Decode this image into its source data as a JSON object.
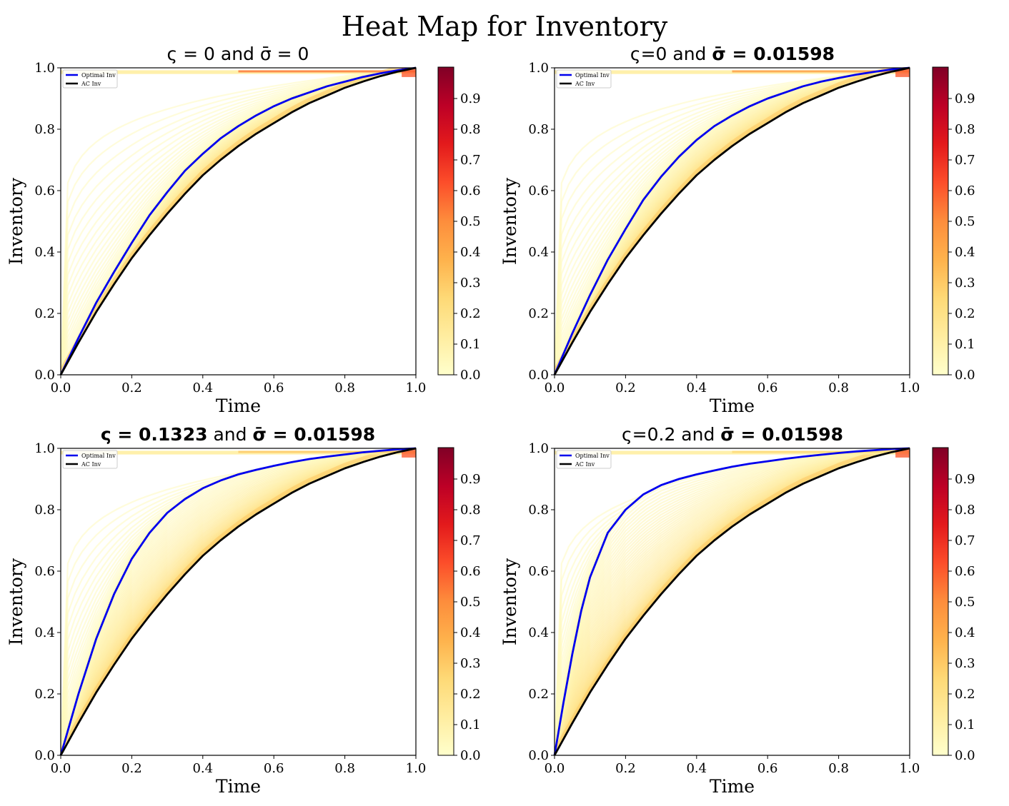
{
  "figure_title": "Heat Map for Inventory",
  "colors": {
    "optimal": "#0000ee",
    "ac": "#000000",
    "axis": "#000000",
    "cmap": [
      "#ffffcc",
      "#ffeda0",
      "#fed976",
      "#feb24c",
      "#fd8d3c",
      "#fc4e2a",
      "#e31a1c",
      "#bd0026",
      "#800026"
    ]
  },
  "chart_data": [
    {
      "type": "heatmap",
      "panel": "top-left",
      "title": {
        "parts": [
          {
            "text": "ς = 0 and ",
            "bold": false
          },
          {
            "text": "σ̄ = 0",
            "bold": false
          }
        ]
      },
      "xlabel": "Time",
      "ylabel": "Inventory",
      "xlim": [
        0,
        1
      ],
      "ylim": [
        0,
        1
      ],
      "xticks": [
        "0.0",
        "0.2",
        "0.4",
        "0.6",
        "0.8",
        "1.0"
      ],
      "yticks": [
        "0.0",
        "0.2",
        "0.4",
        "0.6",
        "0.8",
        "1.0"
      ],
      "legend": {
        "position": "upper-left",
        "entries": [
          "Optimal Inv",
          "AC Inv"
        ]
      },
      "colorbar": {
        "ticks": [
          "0.0",
          "0.1",
          "0.2",
          "0.3",
          "0.4",
          "0.5",
          "0.6",
          "0.7",
          "0.8",
          "0.9"
        ],
        "range": [
          0,
          1
        ]
      },
      "series": [
        {
          "name": "Optimal Inv",
          "color": "blue",
          "x": [
            0,
            0.05,
            0.1,
            0.15,
            0.2,
            0.25,
            0.3,
            0.35,
            0.4,
            0.45,
            0.5,
            0.55,
            0.6,
            0.65,
            0.7,
            0.75,
            0.8,
            0.85,
            0.9,
            0.95,
            1.0
          ],
          "y": [
            0,
            0.12,
            0.235,
            0.335,
            0.43,
            0.52,
            0.595,
            0.665,
            0.72,
            0.77,
            0.81,
            0.845,
            0.875,
            0.9,
            0.92,
            0.94,
            0.955,
            0.97,
            0.982,
            0.992,
            1.0
          ]
        },
        {
          "name": "AC Inv",
          "color": "black",
          "x": [
            0,
            0.05,
            0.1,
            0.15,
            0.2,
            0.25,
            0.3,
            0.35,
            0.4,
            0.45,
            0.5,
            0.55,
            0.6,
            0.65,
            0.7,
            0.75,
            0.8,
            0.85,
            0.9,
            0.95,
            1.0
          ],
          "y": [
            0,
            0.105,
            0.205,
            0.295,
            0.38,
            0.455,
            0.525,
            0.59,
            0.65,
            0.7,
            0.745,
            0.785,
            0.82,
            0.855,
            0.885,
            0.91,
            0.935,
            0.955,
            0.973,
            0.988,
            1.0
          ]
        }
      ]
    },
    {
      "type": "heatmap",
      "panel": "top-right",
      "title": {
        "parts": [
          {
            "text": "ς=0 and ",
            "bold": false
          },
          {
            "text": "σ̄ = 0.01598",
            "bold": true
          }
        ]
      },
      "xlabel": "Time",
      "ylabel": "Inventory",
      "xlim": [
        0,
        1
      ],
      "ylim": [
        0,
        1
      ],
      "xticks": [
        "0.0",
        "0.2",
        "0.4",
        "0.6",
        "0.8",
        "1.0"
      ],
      "yticks": [
        "0.0",
        "0.2",
        "0.4",
        "0.6",
        "0.8",
        "1.0"
      ],
      "legend": {
        "position": "upper-left",
        "entries": [
          "Optimal Inv",
          "AC Inv"
        ]
      },
      "colorbar": {
        "ticks": [
          "0.0",
          "0.1",
          "0.2",
          "0.3",
          "0.4",
          "0.5",
          "0.6",
          "0.7",
          "0.8",
          "0.9"
        ],
        "range": [
          0,
          1
        ]
      },
      "series": [
        {
          "name": "Optimal Inv",
          "color": "blue",
          "x": [
            0,
            0.05,
            0.1,
            0.15,
            0.2,
            0.25,
            0.3,
            0.35,
            0.4,
            0.45,
            0.5,
            0.55,
            0.6,
            0.65,
            0.7,
            0.75,
            0.8,
            0.85,
            0.9,
            0.95,
            1.0
          ],
          "y": [
            0,
            0.135,
            0.26,
            0.375,
            0.475,
            0.57,
            0.645,
            0.71,
            0.765,
            0.81,
            0.845,
            0.875,
            0.9,
            0.92,
            0.94,
            0.955,
            0.967,
            0.978,
            0.987,
            0.995,
            1.0
          ]
        },
        {
          "name": "AC Inv",
          "color": "black",
          "x": [
            0,
            0.05,
            0.1,
            0.15,
            0.2,
            0.25,
            0.3,
            0.35,
            0.4,
            0.45,
            0.5,
            0.55,
            0.6,
            0.65,
            0.7,
            0.75,
            0.8,
            0.85,
            0.9,
            0.95,
            1.0
          ],
          "y": [
            0,
            0.105,
            0.205,
            0.295,
            0.38,
            0.455,
            0.525,
            0.59,
            0.65,
            0.7,
            0.745,
            0.785,
            0.82,
            0.855,
            0.885,
            0.91,
            0.935,
            0.955,
            0.973,
            0.988,
            1.0
          ]
        }
      ]
    },
    {
      "type": "heatmap",
      "panel": "bottom-left",
      "title": {
        "parts": [
          {
            "text": "ς = 0.1323",
            "bold": true
          },
          {
            "text": " and ",
            "bold": false
          },
          {
            "text": "σ̄ = 0.01598",
            "bold": true
          }
        ]
      },
      "xlabel": "Time",
      "ylabel": "Inventory",
      "xlim": [
        0,
        1
      ],
      "ylim": [
        0,
        1
      ],
      "xticks": [
        "0.0",
        "0.2",
        "0.4",
        "0.6",
        "0.8",
        "1.0"
      ],
      "yticks": [
        "0.0",
        "0.2",
        "0.4",
        "0.6",
        "0.8",
        "1.0"
      ],
      "legend": {
        "position": "upper-left",
        "entries": [
          "Optimal Inv",
          "AC Inv"
        ]
      },
      "colorbar": {
        "ticks": [
          "0.0",
          "0.1",
          "0.2",
          "0.3",
          "0.4",
          "0.5",
          "0.6",
          "0.7",
          "0.8",
          "0.9"
        ],
        "range": [
          0,
          1
        ]
      },
      "series": [
        {
          "name": "Optimal Inv",
          "color": "blue",
          "x": [
            0,
            0.05,
            0.1,
            0.15,
            0.2,
            0.25,
            0.3,
            0.35,
            0.4,
            0.45,
            0.5,
            0.55,
            0.6,
            0.65,
            0.7,
            0.75,
            0.8,
            0.85,
            0.9,
            0.95,
            1.0
          ],
          "y": [
            0,
            0.2,
            0.38,
            0.525,
            0.64,
            0.725,
            0.79,
            0.835,
            0.87,
            0.895,
            0.915,
            0.93,
            0.943,
            0.955,
            0.965,
            0.973,
            0.98,
            0.987,
            0.992,
            0.997,
            1.0
          ]
        },
        {
          "name": "AC Inv",
          "color": "black",
          "x": [
            0,
            0.05,
            0.1,
            0.15,
            0.2,
            0.25,
            0.3,
            0.35,
            0.4,
            0.45,
            0.5,
            0.55,
            0.6,
            0.65,
            0.7,
            0.75,
            0.8,
            0.85,
            0.9,
            0.95,
            1.0
          ],
          "y": [
            0,
            0.105,
            0.205,
            0.295,
            0.38,
            0.455,
            0.525,
            0.59,
            0.65,
            0.7,
            0.745,
            0.785,
            0.82,
            0.855,
            0.885,
            0.91,
            0.935,
            0.955,
            0.973,
            0.988,
            1.0
          ]
        }
      ]
    },
    {
      "type": "heatmap",
      "panel": "bottom-right",
      "title": {
        "parts": [
          {
            "text": "ς=0.2 and ",
            "bold": false
          },
          {
            "text": "σ̄ = 0.01598",
            "bold": true
          }
        ]
      },
      "xlabel": "Time",
      "ylabel": "Inventory",
      "xlim": [
        0,
        1
      ],
      "ylim": [
        0,
        1
      ],
      "xticks": [
        "0.0",
        "0.2",
        "0.4",
        "0.6",
        "0.8",
        "1.0"
      ],
      "yticks": [
        "0.0",
        "0.2",
        "0.4",
        "0.6",
        "0.8",
        "1.0"
      ],
      "legend": {
        "position": "upper-left",
        "entries": [
          "Optimal Inv",
          "AC Inv"
        ]
      },
      "colorbar": {
        "ticks": [
          "0.0",
          "0.1",
          "0.2",
          "0.3",
          "0.4",
          "0.5",
          "0.6",
          "0.7",
          "0.8",
          "0.9"
        ],
        "range": [
          0,
          1
        ]
      },
      "series": [
        {
          "name": "Optimal Inv",
          "color": "blue",
          "x": [
            0,
            0.025,
            0.05,
            0.075,
            0.1,
            0.15,
            0.2,
            0.25,
            0.3,
            0.35,
            0.4,
            0.45,
            0.5,
            0.55,
            0.6,
            0.65,
            0.7,
            0.75,
            0.8,
            0.85,
            0.9,
            0.95,
            1.0
          ],
          "y": [
            0,
            0.17,
            0.33,
            0.47,
            0.58,
            0.725,
            0.8,
            0.85,
            0.88,
            0.9,
            0.915,
            0.928,
            0.94,
            0.95,
            0.958,
            0.966,
            0.973,
            0.979,
            0.985,
            0.99,
            0.994,
            0.998,
            1.0
          ]
        },
        {
          "name": "AC Inv",
          "color": "black",
          "x": [
            0,
            0.05,
            0.1,
            0.15,
            0.2,
            0.25,
            0.3,
            0.35,
            0.4,
            0.45,
            0.5,
            0.55,
            0.6,
            0.65,
            0.7,
            0.75,
            0.8,
            0.85,
            0.9,
            0.95,
            1.0
          ],
          "y": [
            0,
            0.105,
            0.205,
            0.295,
            0.38,
            0.455,
            0.525,
            0.59,
            0.65,
            0.7,
            0.745,
            0.785,
            0.82,
            0.855,
            0.885,
            0.91,
            0.935,
            0.955,
            0.973,
            0.988,
            1.0
          ]
        }
      ]
    }
  ]
}
